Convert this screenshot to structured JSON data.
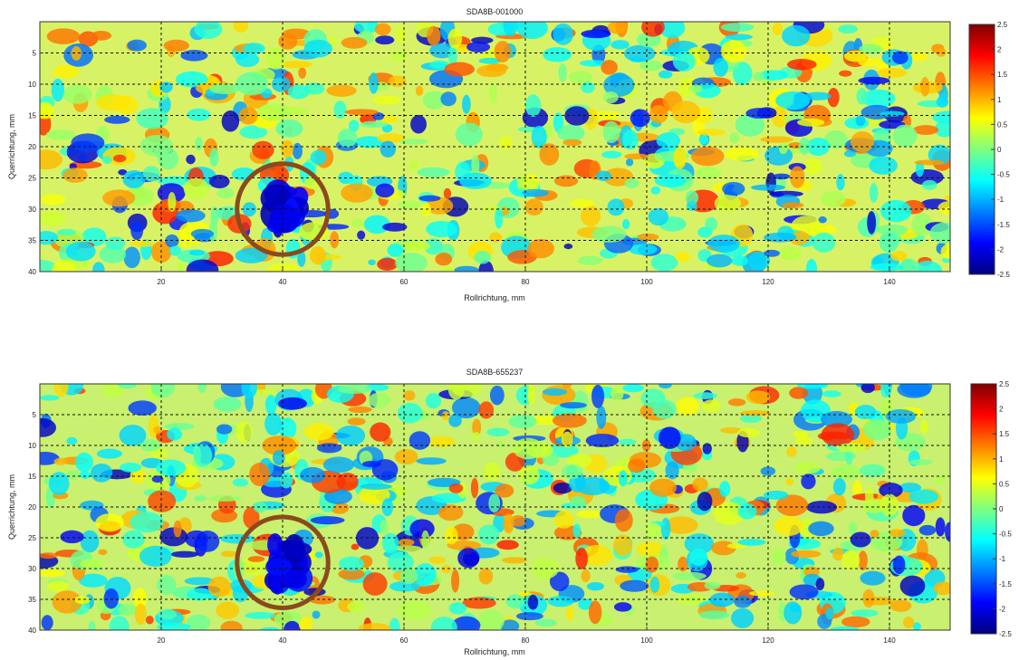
{
  "chart_data": [
    {
      "type": "heatmap",
      "title": "SDA8B-001000",
      "xlabel": "Rollrichtung, mm",
      "ylabel": "Querrichtung, mm",
      "xlim": [
        0,
        150
      ],
      "ylim": [
        0,
        40
      ],
      "y_inverted": true,
      "xticks": [
        20,
        40,
        60,
        80,
        100,
        120,
        140
      ],
      "yticks": [
        5,
        10,
        15,
        20,
        25,
        30,
        35,
        40
      ],
      "colorbar": {
        "range": [
          -2.5,
          2.5
        ],
        "ticks": [
          "2.5",
          "2",
          "1.5",
          "1",
          "0.5",
          "0",
          "-0.5",
          "-1",
          "-1.5",
          "-2",
          "-2.5"
        ],
        "colormap": "jet"
      },
      "grid": true,
      "grid_style": "dashed",
      "annotation": {
        "type": "circle",
        "color": "#8B4A1E",
        "center": [
          40,
          30
        ],
        "radius_mm": 7.5
      }
    },
    {
      "type": "heatmap",
      "title": "SDA8B-655237",
      "xlabel": "Rollrichtung, mm",
      "ylabel": "Querrichtung, mm",
      "xlim": [
        0,
        150
      ],
      "ylim": [
        0,
        40
      ],
      "y_inverted": true,
      "xticks": [
        20,
        40,
        60,
        80,
        100,
        120,
        140
      ],
      "yticks": [
        5,
        10,
        15,
        20,
        25,
        30,
        35,
        40
      ],
      "colorbar": {
        "range": [
          -2.5,
          2.5
        ],
        "ticks": [
          "2.5",
          "2",
          "1.5",
          "1",
          "0.5",
          "0",
          "-0.5",
          "-1",
          "-1.5",
          "-2",
          "-2.5"
        ],
        "colormap": "jet"
      },
      "grid": true,
      "grid_style": "dashed",
      "annotation": {
        "type": "circle",
        "color": "#8B4A1E",
        "center": [
          40,
          29
        ],
        "radius_mm": 7.5
      }
    }
  ]
}
